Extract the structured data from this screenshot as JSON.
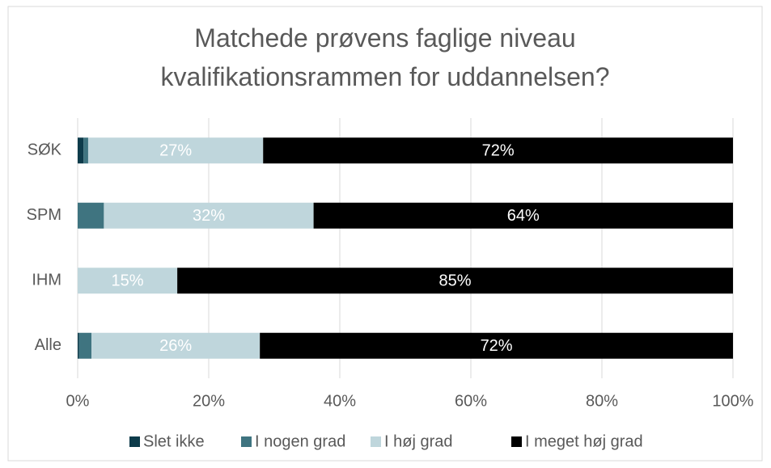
{
  "chart_data": {
    "type": "stacked_barh",
    "title": "Matchede prøvens faglige niveau kvalifikationsrammen for uddannelsen?",
    "categories": [
      "SØK",
      "SPM",
      "IHM",
      "Alle"
    ],
    "series": [
      {
        "name": "Slet ikke",
        "color": "#0d3b4a",
        "values": [
          0.9,
          0,
          0,
          0.2
        ]
      },
      {
        "name": "I nogen grad",
        "color": "#3f7480",
        "values": [
          0.7,
          4,
          0,
          1.9
        ]
      },
      {
        "name": "I høj grad",
        "color": "#bfd6dc",
        "values": [
          26.7,
          32,
          15.2,
          25.7
        ],
        "value_labels": [
          "27%",
          "32%",
          "15%",
          "26%"
        ]
      },
      {
        "name": "I meget høj grad",
        "color": "#000000",
        "values": [
          71.7,
          64,
          84.8,
          72.2
        ],
        "value_labels": [
          "72%",
          "64%",
          "85%",
          "72%"
        ]
      }
    ],
    "xlim": [
      0,
      100
    ],
    "xticks": [
      {
        "value": 0,
        "label": "0%"
      },
      {
        "value": 20,
        "label": "20%"
      },
      {
        "value": 40,
        "label": "40%"
      },
      {
        "value": 60,
        "label": "60%"
      },
      {
        "value": 80,
        "label": "80%"
      },
      {
        "value": 100,
        "label": "100%"
      }
    ],
    "grid": true,
    "legend": "bottom"
  }
}
